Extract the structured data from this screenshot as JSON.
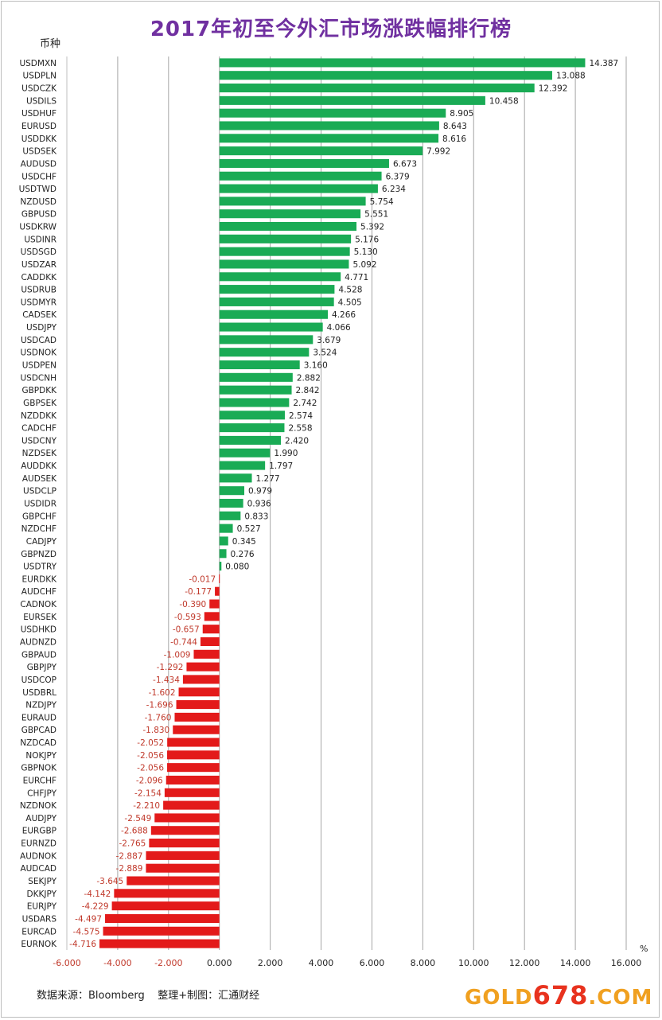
{
  "header": {
    "title": "2017年初至今外汇市场涨跌幅排行榜",
    "y_axis_label": "币种",
    "unit_label": "%"
  },
  "footer": {
    "source": "数据来源：Bloomberg    整理+制图：汇通财经",
    "logo_prefix": "GOLD",
    "logo_number": "678",
    "logo_suffix": ".COM"
  },
  "colors": {
    "positive": "#1aab55",
    "negative": "#e31a1a",
    "negative_label": "#c0392b",
    "grid": "#a6a6a6",
    "title": "#7030a0"
  },
  "chart_data": {
    "type": "bar",
    "orientation": "horizontal",
    "xlim": [
      -6,
      16
    ],
    "xticks": [
      "-6.000",
      "-4.000",
      "-2.000",
      "0.000",
      "2.000",
      "4.000",
      "6.000",
      "8.000",
      "10.000",
      "12.000",
      "14.000",
      "16.000"
    ],
    "grid": "vertical",
    "categories": [
      "USDMXN",
      "USDPLN",
      "USDCZK",
      "USDILS",
      "USDHUF",
      "EURUSD",
      "USDDKK",
      "USDSEK",
      "AUDUSD",
      "USDCHF",
      "USDTWD",
      "NZDUSD",
      "GBPUSD",
      "USDKRW",
      "USDINR",
      "USDSGD",
      "USDZAR",
      "CADDKK",
      "USDRUB",
      "USDMYR",
      "CADSEK",
      "USDJPY",
      "USDCAD",
      "USDNOK",
      "USDPEN",
      "USDCNH",
      "GBPDKK",
      "GBPSEK",
      "NZDDKK",
      "CADCHF",
      "USDCNY",
      "NZDSEK",
      "AUDDKK",
      "AUDSEK",
      "USDCLP",
      "USDIDR",
      "GBPCHF",
      "NZDCHF",
      "CADJPY",
      "GBPNZD",
      "USDTRY",
      "EURDKK",
      "AUDCHF",
      "CADNOK",
      "EURSEK",
      "USDHKD",
      "AUDNZD",
      "GBPAUD",
      "GBPJPY",
      "USDCOP",
      "USDBRL",
      "NZDJPY",
      "EURAUD",
      "GBPCAD",
      "NZDCAD",
      "NOKJPY",
      "GBPNOK",
      "EURCHF",
      "CHFJPY",
      "NZDNOK",
      "AUDJPY",
      "EURGBP",
      "EURNZD",
      "AUDNOK",
      "AUDCAD",
      "SEKJPY",
      "DKKJPY",
      "EURJPY",
      "USDARS",
      "EURCAD",
      "EURNOK"
    ],
    "values": [
      14.387,
      13.088,
      12.392,
      10.458,
      8.905,
      8.643,
      8.616,
      7.992,
      6.673,
      6.379,
      6.234,
      5.754,
      5.551,
      5.392,
      5.176,
      5.13,
      5.092,
      4.771,
      4.528,
      4.505,
      4.266,
      4.066,
      3.679,
      3.524,
      3.16,
      2.882,
      2.842,
      2.742,
      2.574,
      2.558,
      2.42,
      1.99,
      1.797,
      1.277,
      0.979,
      0.936,
      0.833,
      0.527,
      0.345,
      0.276,
      0.08,
      -0.017,
      -0.177,
      -0.39,
      -0.593,
      -0.657,
      -0.744,
      -1.009,
      -1.292,
      -1.434,
      -1.602,
      -1.696,
      -1.76,
      -1.83,
      -2.052,
      -2.056,
      -2.056,
      -2.096,
      -2.154,
      -2.21,
      -2.549,
      -2.688,
      -2.765,
      -2.887,
      -2.889,
      -3.645,
      -4.142,
      -4.229,
      -4.497,
      -4.575,
      -4.716
    ],
    "labels": [
      "14.387",
      "13.088",
      "12.392",
      "10.458",
      "8.905",
      "8.643",
      "8.616",
      "7.992",
      "6.673",
      "6.379",
      "6.234",
      "5.754",
      "5.551",
      "5.392",
      "5.176",
      "5.130",
      "5.092",
      "4.771",
      "4.528",
      "4.505",
      "4.266",
      "4.066",
      "3.679",
      "3.524",
      "3.160",
      "2.882",
      "2.842",
      "2.742",
      "2.574",
      "2.558",
      "2.420",
      "1.990",
      "1.797",
      "1.277",
      "0.979",
      "0.936",
      "0.833",
      "0.527",
      "0.345",
      "0.276",
      "0.080",
      "-0.017",
      "-0.177",
      "-0.390",
      "-0.593",
      "-0.657",
      "-0.744",
      "-1.009",
      "-1.292",
      "-1.434",
      "-1.602",
      "-1.696",
      "-1.760",
      "-1.830",
      "-2.052",
      "-2.056",
      "-2.056",
      "-2.096",
      "-2.154",
      "-2.210",
      "-2.549",
      "-2.688",
      "-2.765",
      "-2.887",
      "-2.889",
      "-3.645",
      "-4.142",
      "-4.229",
      "-4.497",
      "-4.575",
      "-4.716"
    ]
  }
}
